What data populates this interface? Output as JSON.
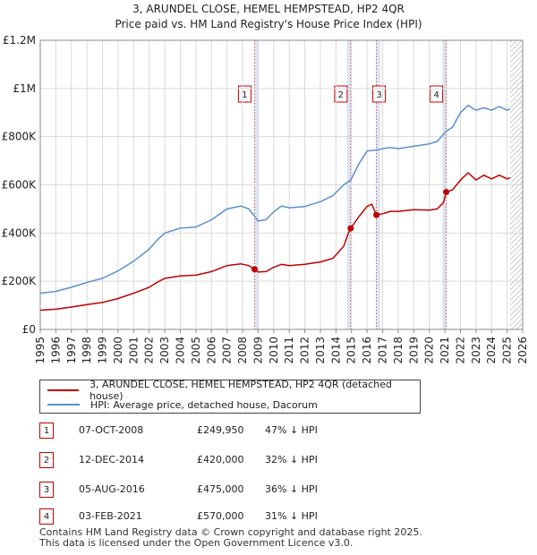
{
  "chart_data": {
    "type": "line",
    "title": "3, ARUNDEL CLOSE, HEMEL HEMPSTEAD, HP2 4QR",
    "subtitle": "Price paid vs. HM Land Registry's House Price Index (HPI)",
    "xlabel": "",
    "ylabel": "",
    "xlim": [
      1995,
      2026
    ],
    "ylim": [
      0,
      1200000
    ],
    "y_ticks": [
      0,
      200000,
      400000,
      600000,
      800000,
      1000000,
      1200000
    ],
    "y_tick_labels": [
      "£0",
      "£200K",
      "£400K",
      "£600K",
      "£800K",
      "£1M",
      "£1.2M"
    ],
    "x_ticks": [
      1995,
      1996,
      1997,
      1998,
      1999,
      2000,
      2001,
      2002,
      2003,
      2004,
      2005,
      2006,
      2007,
      2008,
      2009,
      2010,
      2011,
      2012,
      2013,
      2014,
      2015,
      2016,
      2017,
      2018,
      2019,
      2020,
      2021,
      2022,
      2023,
      2024,
      2025,
      2026
    ],
    "x_tick_labels": [
      "1995",
      "1996",
      "1997",
      "1998",
      "1999",
      "2000",
      "2001",
      "2002",
      "2003",
      "2004",
      "2005",
      "2006",
      "2007",
      "2008",
      "2009",
      "2010",
      "2011",
      "2012",
      "2013",
      "2014",
      "2015",
      "2016",
      "2017",
      "2018",
      "2019",
      "2020",
      "2021",
      "2022",
      "2023",
      "2024",
      "2025",
      "2026"
    ],
    "grid": true,
    "legend_position": "below",
    "hatched_region_start": 2025.2,
    "series": [
      {
        "name": "3, ARUNDEL CLOSE, HEMEL HEMPSTEAD, HP2 4QR (detached house)",
        "color": "#c00000",
        "x": [
          1995.0,
          1996.0,
          1997.0,
          1998.0,
          1999.0,
          2000.0,
          2001.0,
          2002.0,
          2002.5,
          2003.0,
          2004.0,
          2005.0,
          2006.0,
          2007.0,
          2007.9,
          2008.4,
          2008.77,
          2009.0,
          2009.5,
          2010.0,
          2010.5,
          2011.0,
          2012.0,
          2013.0,
          2013.8,
          2014.5,
          2014.8,
          2014.95,
          2015.5,
          2016.0,
          2016.3,
          2016.6,
          2017.0,
          2017.5,
          2018.0,
          2019.0,
          2020.0,
          2020.5,
          2020.9,
          2021.09,
          2021.5,
          2022.0,
          2022.5,
          2023.0,
          2023.5,
          2024.0,
          2024.5,
          2025.0,
          2025.2
        ],
        "values": [
          80000,
          84000,
          93000,
          103000,
          112000,
          128000,
          150000,
          175000,
          195000,
          212000,
          222000,
          225000,
          240000,
          265000,
          272000,
          265000,
          249950,
          238000,
          240000,
          258000,
          270000,
          265000,
          270000,
          280000,
          295000,
          345000,
          400000,
          420000,
          470000,
          510000,
          520000,
          475000,
          480000,
          490000,
          490000,
          497000,
          495000,
          500000,
          525000,
          570000,
          580000,
          620000,
          650000,
          620000,
          640000,
          625000,
          640000,
          625000,
          630000
        ]
      },
      {
        "name": "HPI: Average price, detached house, Dacorum",
        "color": "#5b8fd0",
        "x": [
          1995.0,
          1996.0,
          1997.0,
          1998.0,
          1999.0,
          2000.0,
          2001.0,
          2002.0,
          2002.5,
          2003.0,
          2004.0,
          2005.0,
          2006.0,
          2007.0,
          2007.9,
          2008.4,
          2008.77,
          2009.0,
          2009.5,
          2010.0,
          2010.5,
          2011.0,
          2012.0,
          2013.0,
          2013.8,
          2014.5,
          2014.95,
          2015.5,
          2016.0,
          2016.6,
          2017.0,
          2017.5,
          2018.0,
          2019.0,
          2020.0,
          2020.5,
          2021.09,
          2021.5,
          2022.0,
          2022.5,
          2023.0,
          2023.5,
          2024.0,
          2024.5,
          2025.0,
          2025.2
        ],
        "values": [
          150000,
          158000,
          175000,
          195000,
          212000,
          243000,
          283000,
          333000,
          370000,
          400000,
          420000,
          425000,
          455000,
          500000,
          512000,
          500000,
          470000,
          450000,
          455000,
          488000,
          512000,
          505000,
          510000,
          530000,
          555000,
          600000,
          620000,
          690000,
          740000,
          745000,
          750000,
          755000,
          750000,
          760000,
          770000,
          780000,
          822000,
          840000,
          900000,
          930000,
          910000,
          920000,
          910000,
          925000,
          910000,
          915000
        ]
      }
    ],
    "sales": [
      {
        "label": "1",
        "date": "07-OCT-2008",
        "x": 2008.77,
        "price": 249950
      },
      {
        "label": "2",
        "date": "12-DEC-2014",
        "x": 2014.95,
        "price": 420000
      },
      {
        "label": "3",
        "date": "05-AUG-2016",
        "x": 2016.6,
        "price": 475000
      },
      {
        "label": "4",
        "date": "03-FEB-2021",
        "x": 2021.09,
        "price": 570000
      }
    ]
  },
  "legend": {
    "price_paid": "3, ARUNDEL CLOSE, HEMEL HEMPSTEAD, HP2 4QR (detached house)",
    "hpi": "HPI: Average price, detached house, Dacorum"
  },
  "sales_table": [
    {
      "num": "1",
      "date": "07-OCT-2008",
      "price": "£249,950",
      "hpi": "47% ↓ HPI"
    },
    {
      "num": "2",
      "date": "12-DEC-2014",
      "price": "£420,000",
      "hpi": "32% ↓ HPI"
    },
    {
      "num": "3",
      "date": "05-AUG-2016",
      "price": "£475,000",
      "hpi": "36% ↓ HPI"
    },
    {
      "num": "4",
      "date": "03-FEB-2021",
      "price": "£570,000",
      "hpi": "31% ↓ HPI"
    }
  ],
  "footer": {
    "line1": "Contains HM Land Registry data © Crown copyright and database right 2025.",
    "line2": "This data is licensed under the Open Government Licence v3.0."
  },
  "colors": {
    "price_line": "#c00000",
    "hpi_line": "#5b8fd0",
    "sale_region": "#dce6f5",
    "grid": "#d9d9d9"
  }
}
